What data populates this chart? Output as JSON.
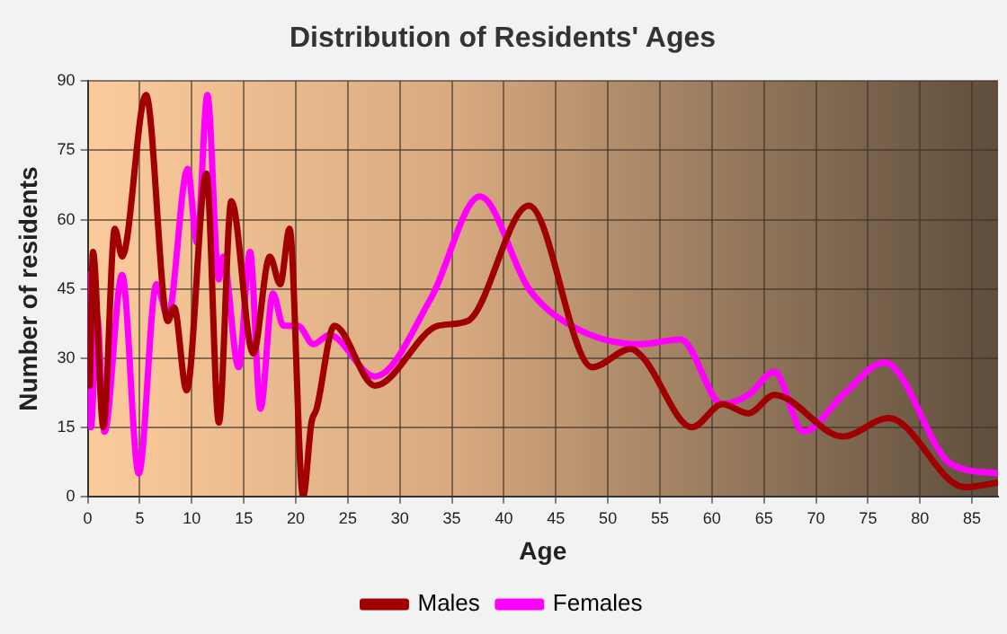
{
  "chart_data": {
    "type": "line",
    "title": "Distribution of Residents' Ages",
    "xlabel": "Age",
    "ylabel": "Number of residents",
    "xlim": [
      0,
      87.5
    ],
    "xticks": [
      0,
      5,
      10,
      15,
      20,
      25,
      30,
      35,
      40,
      45,
      50,
      55,
      60,
      65,
      70,
      75,
      80,
      85
    ],
    "ylim": [
      0,
      90
    ],
    "yticks": [
      0,
      15,
      30,
      45,
      60,
      75,
      90
    ],
    "grid": true,
    "legend": "bottom",
    "marker": "none",
    "line_style": "solid",
    "series": [
      {
        "name": "Males",
        "color": "#a00000",
        "x": [
          0.2,
          0.5,
          1.5,
          2.6,
          3.3,
          5.6,
          7.7,
          8.3,
          9.5,
          11.4,
          12.6,
          13.8,
          15.9,
          17.5,
          18.5,
          19.4,
          20.7,
          21.5,
          22,
          23.7,
          27.6,
          33.7,
          36.5,
          42.4,
          48.5,
          52.2,
          53.4,
          58.1,
          61,
          63.5,
          66,
          72.6,
          77,
          84.3,
          87.5
        ],
        "values": [
          24,
          53,
          15,
          58,
          52,
          87,
          38,
          41,
          23,
          70,
          16,
          64,
          31,
          52,
          46,
          58,
          0,
          16,
          19,
          37,
          24,
          37,
          38,
          63,
          28,
          32,
          30,
          15,
          20,
          18,
          22,
          13,
          17,
          2,
          3
        ]
      },
      {
        "name": "Females",
        "color": "#ff00ff",
        "x": [
          0,
          0.3,
          0.9,
          1.6,
          3.3,
          4.9,
          6.6,
          7.7,
          9.6,
          10.5,
          11.5,
          12.6,
          13,
          14.5,
          15.6,
          16.6,
          17.8,
          18.8,
          20.2,
          21.7,
          23.2,
          27.6,
          33,
          37.7,
          42.4,
          46.5,
          53,
          57,
          61,
          63.5,
          66,
          68.8,
          72.6,
          76.6,
          83,
          87.5
        ],
        "values": [
          48,
          15,
          39,
          14,
          48,
          5,
          46,
          39,
          71,
          55,
          87,
          47,
          52,
          28,
          53,
          19,
          44,
          37,
          37,
          33,
          35,
          26,
          43,
          65,
          45,
          37,
          33,
          34,
          20,
          22,
          27,
          14,
          22,
          29,
          7,
          5
        ]
      }
    ]
  }
}
